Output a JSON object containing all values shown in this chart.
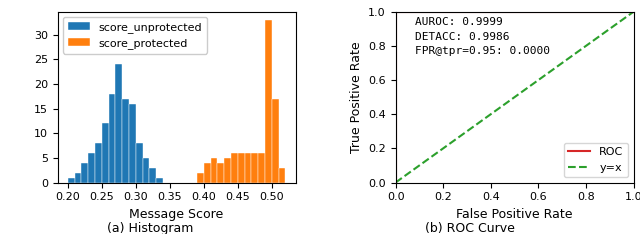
{
  "hist_unprotected": {
    "label": "score_unprotected",
    "color": "#1f77b4",
    "bins": [
      0.2,
      0.21,
      0.22,
      0.23,
      0.24,
      0.25,
      0.26,
      0.27,
      0.28,
      0.29,
      0.3,
      0.31,
      0.32,
      0.33,
      0.34
    ],
    "counts": [
      1,
      2,
      4,
      6,
      8,
      12,
      18,
      24,
      17,
      16,
      8,
      5,
      3,
      1,
      0
    ]
  },
  "hist_protected": {
    "label": "score_protected",
    "color": "#ff7f0e",
    "bins": [
      0.39,
      0.4,
      0.41,
      0.42,
      0.43,
      0.44,
      0.45,
      0.46,
      0.47,
      0.48,
      0.49,
      0.5,
      0.51
    ],
    "counts": [
      2,
      4,
      5,
      4,
      5,
      6,
      6,
      6,
      6,
      6,
      33,
      17,
      3
    ]
  },
  "hist_xlabel": "Message Score",
  "hist_title": "(a) Histogram",
  "hist_xlim": [
    0.185,
    0.535
  ],
  "hist_xticks": [
    0.2,
    0.25,
    0.3,
    0.35,
    0.4,
    0.45,
    0.5
  ],
  "roc_curve": {
    "fpr": [
      0.0,
      0.0,
      1.0
    ],
    "tpr": [
      0.0,
      1.0,
      1.0
    ]
  },
  "roc_color": "#d62728",
  "diagonal_color": "#2ca02c",
  "roc_xlabel": "False Positive Rate",
  "roc_ylabel": "True Positive Rate",
  "roc_title": "(b) ROC Curve",
  "annotation": "AUROC: 0.9999\nDETACC: 0.9986\nFPR@tpr=0.95: 0.0000",
  "roc_legend_roc": "ROC",
  "roc_legend_diag": "y=x",
  "roc_xlim": [
    0.0,
    1.0
  ],
  "roc_ylim": [
    0.0,
    1.0
  ],
  "roc_xticks": [
    0.0,
    0.2,
    0.4,
    0.6,
    0.8,
    1.0
  ],
  "roc_yticks": [
    0.0,
    0.2,
    0.4,
    0.6,
    0.8,
    1.0
  ]
}
